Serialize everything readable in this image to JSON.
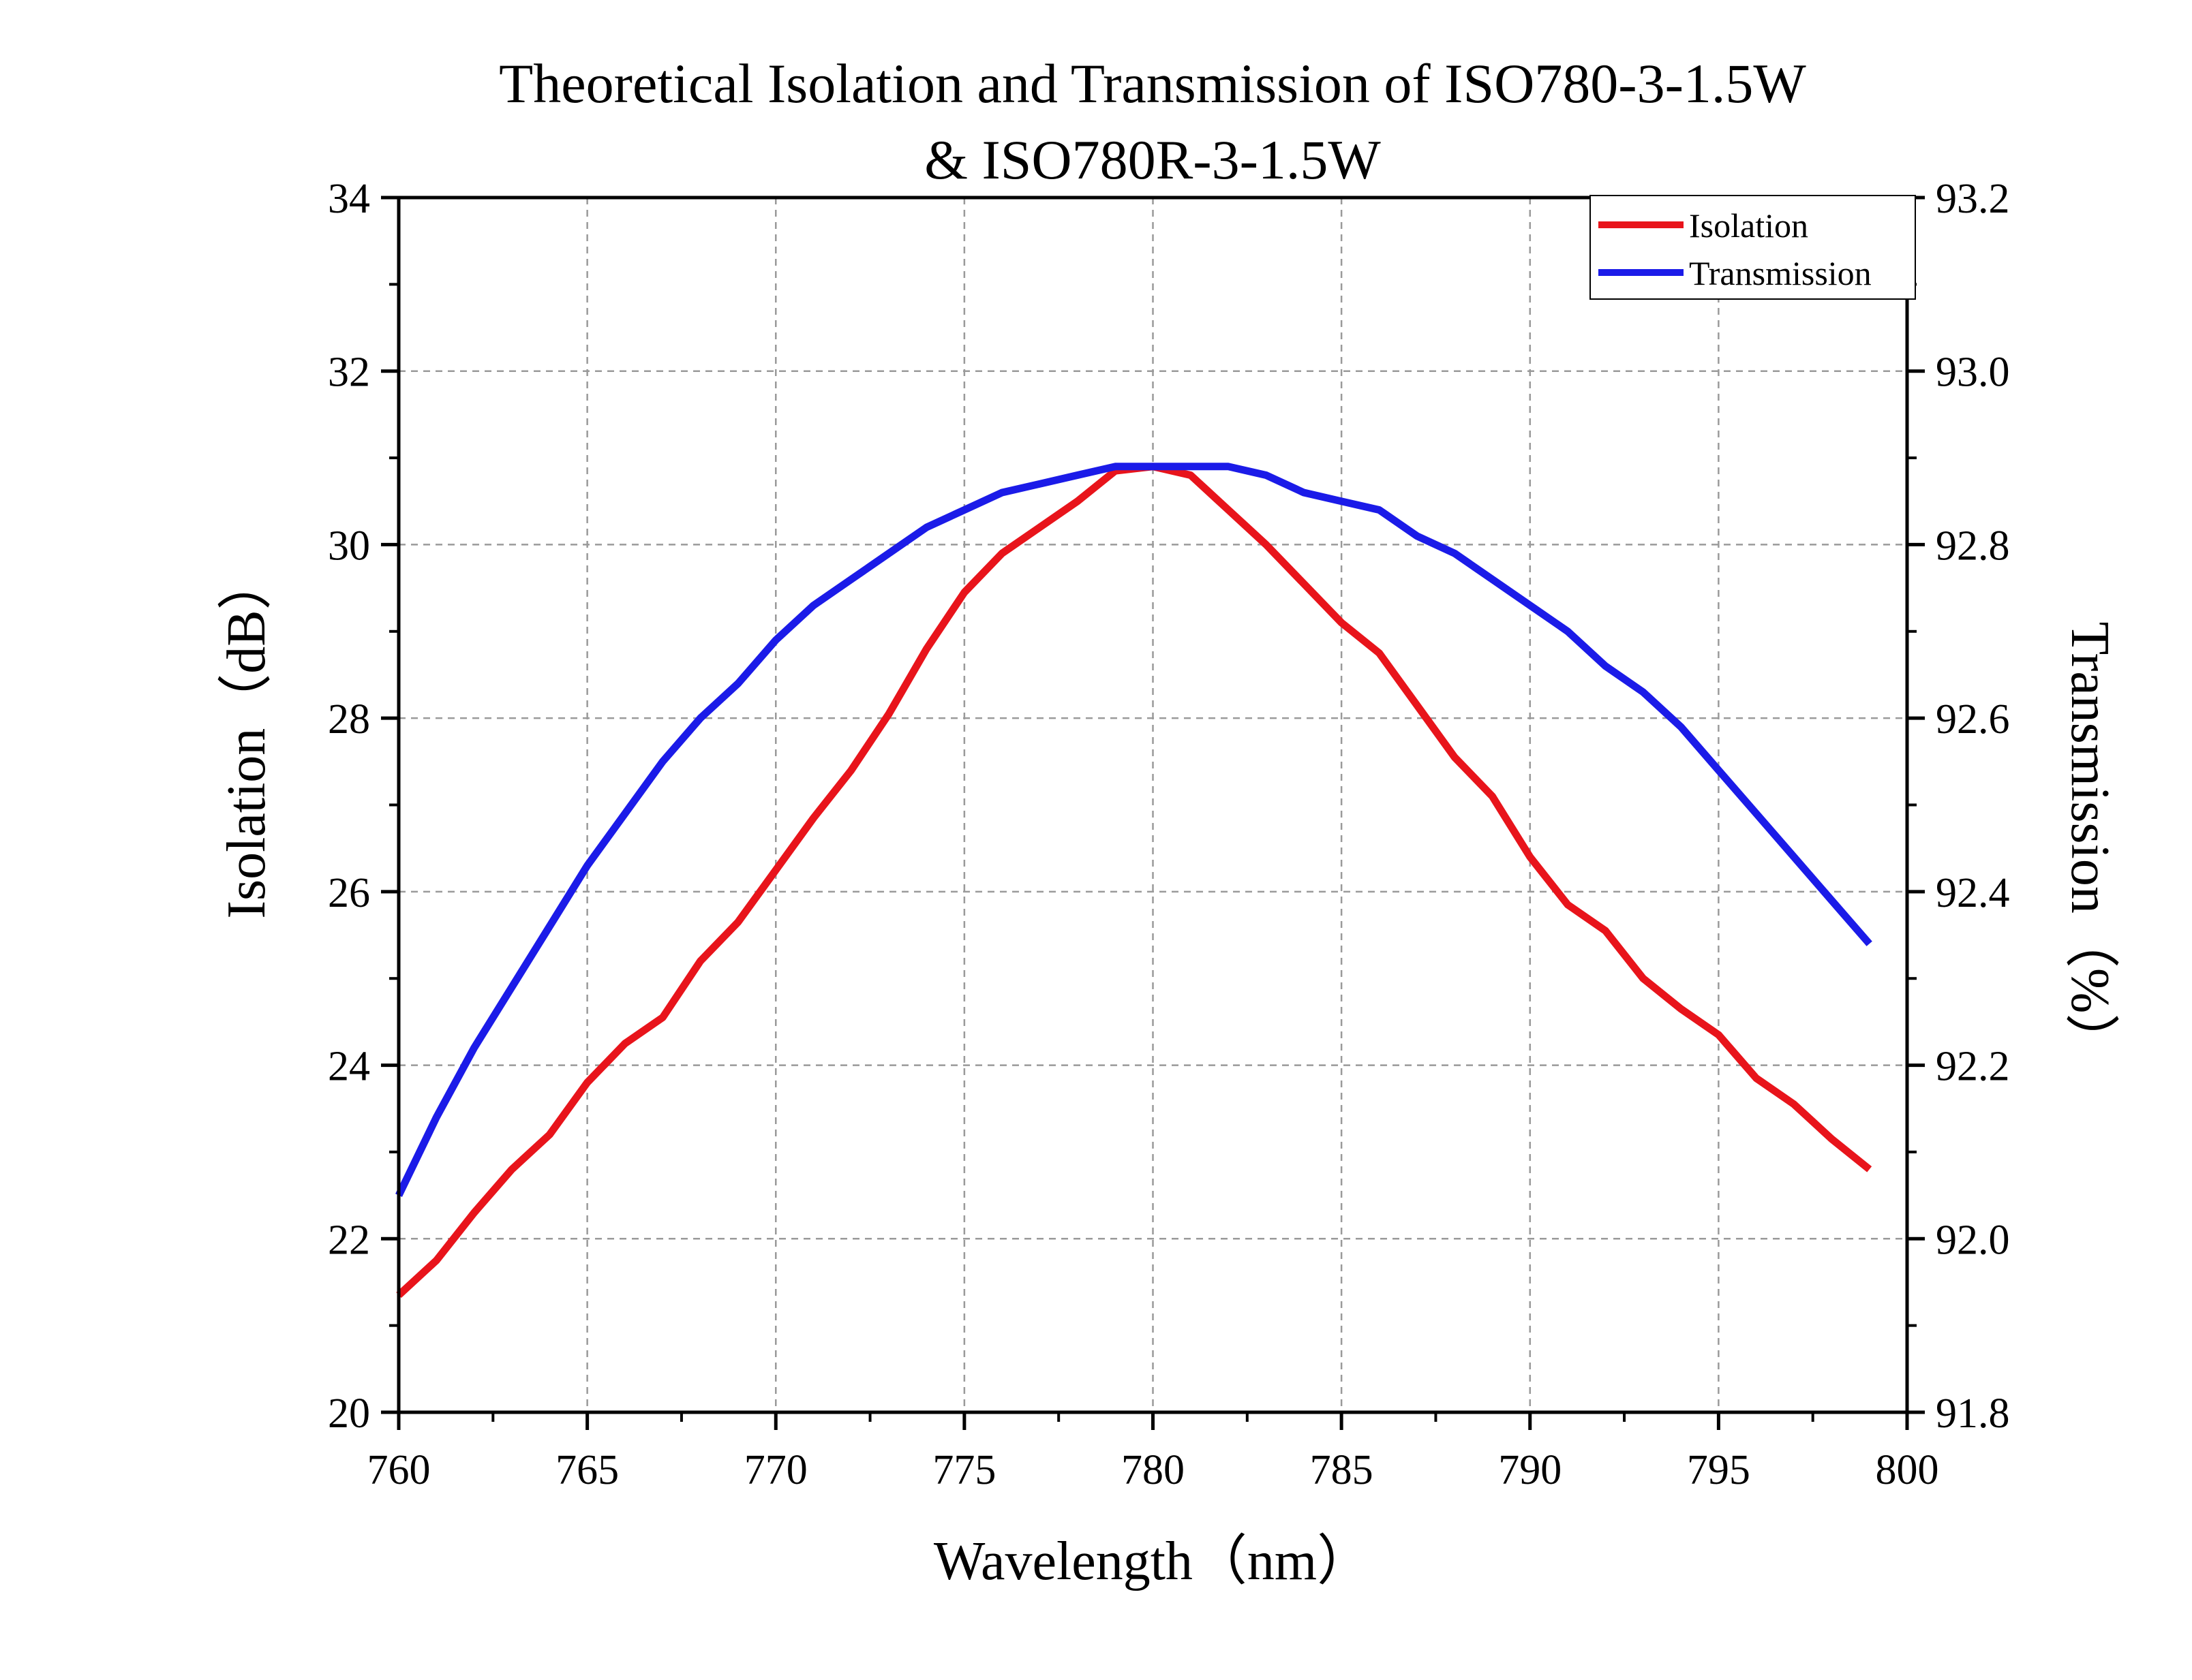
{
  "chart_data": {
    "type": "line",
    "title": "Theoretical Isolation and Transmission of ISO780-3-1.5W",
    "subtitle": "& ISO780R-3-1.5W",
    "xlabel": "Wavelength（nm）",
    "ylabel": "Isolation（dB）",
    "y2label": "Transmission（%）",
    "xlim": [
      760,
      800
    ],
    "ylim": [
      20,
      34
    ],
    "y2lim": [
      91.8,
      93.2
    ],
    "x_ticks": [
      "760",
      "765",
      "770",
      "775",
      "780",
      "785",
      "790",
      "795",
      "800"
    ],
    "y_ticks": [
      "20",
      "22",
      "24",
      "26",
      "28",
      "30",
      "32",
      "34"
    ],
    "y2_ticks": [
      "91.8",
      "92.0",
      "92.2",
      "92.4",
      "92.6",
      "92.8",
      "93.0",
      "93.2"
    ],
    "grid": true,
    "legend_position": "top-right",
    "x": [
      760,
      761,
      762,
      763,
      764,
      765,
      766,
      767,
      768,
      769,
      770,
      771,
      772,
      773,
      774,
      775,
      776,
      777,
      778,
      779,
      780,
      781,
      782,
      783,
      784,
      785,
      786,
      787,
      788,
      789,
      790,
      791,
      792,
      793,
      794,
      795,
      796,
      797,
      798,
      799
    ],
    "series": [
      {
        "name": "Isolation",
        "axis": "left",
        "color": "#e8141b",
        "values": [
          21.35,
          21.75,
          22.3,
          22.8,
          23.2,
          23.8,
          24.25,
          24.55,
          25.2,
          25.65,
          26.25,
          26.85,
          27.4,
          28.05,
          28.8,
          29.45,
          29.9,
          30.2,
          30.5,
          30.85,
          30.9,
          30.8,
          30.4,
          30.0,
          29.55,
          29.1,
          28.75,
          28.15,
          27.55,
          27.1,
          26.4,
          25.85,
          25.55,
          25.0,
          24.65,
          24.35,
          23.85,
          23.55,
          23.15,
          22.8
        ]
      },
      {
        "name": "Transmission",
        "axis": "right",
        "color": "#1b1be8",
        "values": [
          92.05,
          92.14,
          92.22,
          92.29,
          92.36,
          92.43,
          92.49,
          92.55,
          92.6,
          92.64,
          92.69,
          92.73,
          92.76,
          92.79,
          92.82,
          92.84,
          92.86,
          92.87,
          92.88,
          92.89,
          92.89,
          92.89,
          92.89,
          92.88,
          92.86,
          92.85,
          92.84,
          92.81,
          92.79,
          92.76,
          92.73,
          92.7,
          92.66,
          92.63,
          92.59,
          92.54,
          92.49,
          92.44,
          92.39,
          92.34
        ]
      }
    ]
  }
}
